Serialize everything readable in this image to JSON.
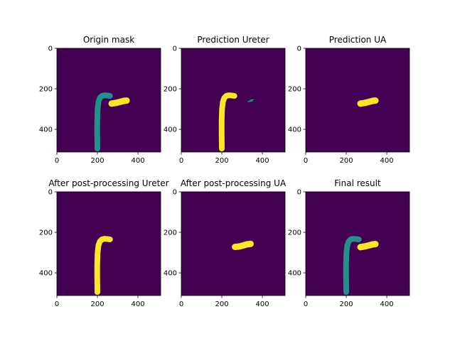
{
  "figure": {
    "background": "#ffffff"
  },
  "palette": {
    "background_class": "#440154",
    "ureter_class": "#21918c",
    "ua_class": "#fde725"
  },
  "chart_data": [
    {
      "type": "heatmap",
      "title": "Origin mask",
      "xticks": [
        0,
        200,
        400
      ],
      "yticks": [
        0,
        200,
        400
      ],
      "xlim": [
        0,
        512
      ],
      "ylim": [
        512,
        0
      ],
      "layers": [
        {
          "name": "ureter",
          "color": "#21918c",
          "width": 8,
          "points": [
            [
              200,
              495
            ],
            [
              199,
              420
            ],
            [
              199,
              360
            ],
            [
              201,
              300
            ],
            [
              205,
              265
            ],
            [
              212,
              245
            ],
            [
              222,
              235
            ],
            [
              234,
              232
            ],
            [
              250,
              233
            ],
            [
              262,
              235
            ]
          ]
        },
        {
          "name": "ua",
          "color": "#fde725",
          "width": 9,
          "points": [
            [
              270,
              273
            ],
            [
              290,
              270
            ],
            [
              310,
              265
            ],
            [
              328,
              260
            ],
            [
              344,
              258
            ]
          ]
        }
      ]
    },
    {
      "type": "heatmap",
      "title": "Prediction Ureter",
      "xticks": [
        0,
        200,
        400
      ],
      "yticks": [
        0,
        200,
        400
      ],
      "xlim": [
        0,
        512
      ],
      "ylim": [
        512,
        0
      ],
      "layers": [
        {
          "name": "ureter",
          "color": "#fde725",
          "width": 8,
          "points": [
            [
              200,
              495
            ],
            [
              199,
              420
            ],
            [
              199,
              360
            ],
            [
              201,
              300
            ],
            [
              205,
              265
            ],
            [
              212,
              245
            ],
            [
              222,
              235
            ],
            [
              234,
              232
            ],
            [
              250,
              233
            ],
            [
              262,
              235
            ]
          ]
        },
        {
          "name": "noise",
          "color": "#21918c",
          "width": 1.5,
          "points": [
            [
              330,
              263
            ],
            [
              350,
              260
            ]
          ]
        },
        {
          "name": "noise2",
          "color": "#21918c",
          "width": 1.5,
          "points": [
            [
              340,
              256
            ],
            [
              355,
              254
            ]
          ]
        }
      ]
    },
    {
      "type": "heatmap",
      "title": "Prediction UA",
      "xticks": [
        0,
        200,
        400
      ],
      "yticks": [
        0,
        200,
        400
      ],
      "xlim": [
        0,
        512
      ],
      "ylim": [
        512,
        0
      ],
      "layers": [
        {
          "name": "ua",
          "color": "#fde725",
          "width": 9,
          "points": [
            [
              270,
              273
            ],
            [
              290,
              270
            ],
            [
              310,
              265
            ],
            [
              328,
              260
            ],
            [
              344,
              258
            ]
          ]
        }
      ]
    },
    {
      "type": "heatmap",
      "title": "After post-processing Ureter",
      "xticks": [
        0,
        200,
        400
      ],
      "yticks": [
        0,
        200,
        400
      ],
      "xlim": [
        0,
        512
      ],
      "ylim": [
        512,
        0
      ],
      "layers": [
        {
          "name": "ureter",
          "color": "#fde725",
          "width": 8,
          "points": [
            [
              200,
              495
            ],
            [
              199,
              420
            ],
            [
              199,
              360
            ],
            [
              201,
              300
            ],
            [
              205,
              265
            ],
            [
              212,
              245
            ],
            [
              222,
              235
            ],
            [
              234,
              232
            ],
            [
              250,
              233
            ],
            [
              262,
              235
            ]
          ]
        }
      ]
    },
    {
      "type": "heatmap",
      "title": "After post-processing UA",
      "xticks": [
        0,
        200,
        400
      ],
      "yticks": [
        0,
        200,
        400
      ],
      "xlim": [
        0,
        512
      ],
      "ylim": [
        512,
        0
      ],
      "layers": [
        {
          "name": "ua",
          "color": "#fde725",
          "width": 9,
          "points": [
            [
              265,
              272
            ],
            [
              285,
              270
            ],
            [
              305,
              265
            ],
            [
              325,
              259
            ],
            [
              342,
              257
            ]
          ]
        }
      ]
    },
    {
      "type": "heatmap",
      "title": "Final result",
      "xticks": [
        0,
        200,
        400
      ],
      "yticks": [
        0,
        200,
        400
      ],
      "xlim": [
        0,
        512
      ],
      "ylim": [
        512,
        0
      ],
      "layers": [
        {
          "name": "ureter",
          "color": "#21918c",
          "width": 8,
          "points": [
            [
              200,
              495
            ],
            [
              199,
              420
            ],
            [
              199,
              360
            ],
            [
              201,
              300
            ],
            [
              205,
              265
            ],
            [
              212,
              245
            ],
            [
              222,
              235
            ],
            [
              234,
              232
            ],
            [
              250,
              233
            ],
            [
              262,
              235
            ]
          ]
        },
        {
          "name": "ua",
          "color": "#fde725",
          "width": 9,
          "points": [
            [
              270,
              273
            ],
            [
              290,
              270
            ],
            [
              310,
              265
            ],
            [
              328,
              260
            ],
            [
              344,
              258
            ]
          ]
        }
      ]
    }
  ]
}
